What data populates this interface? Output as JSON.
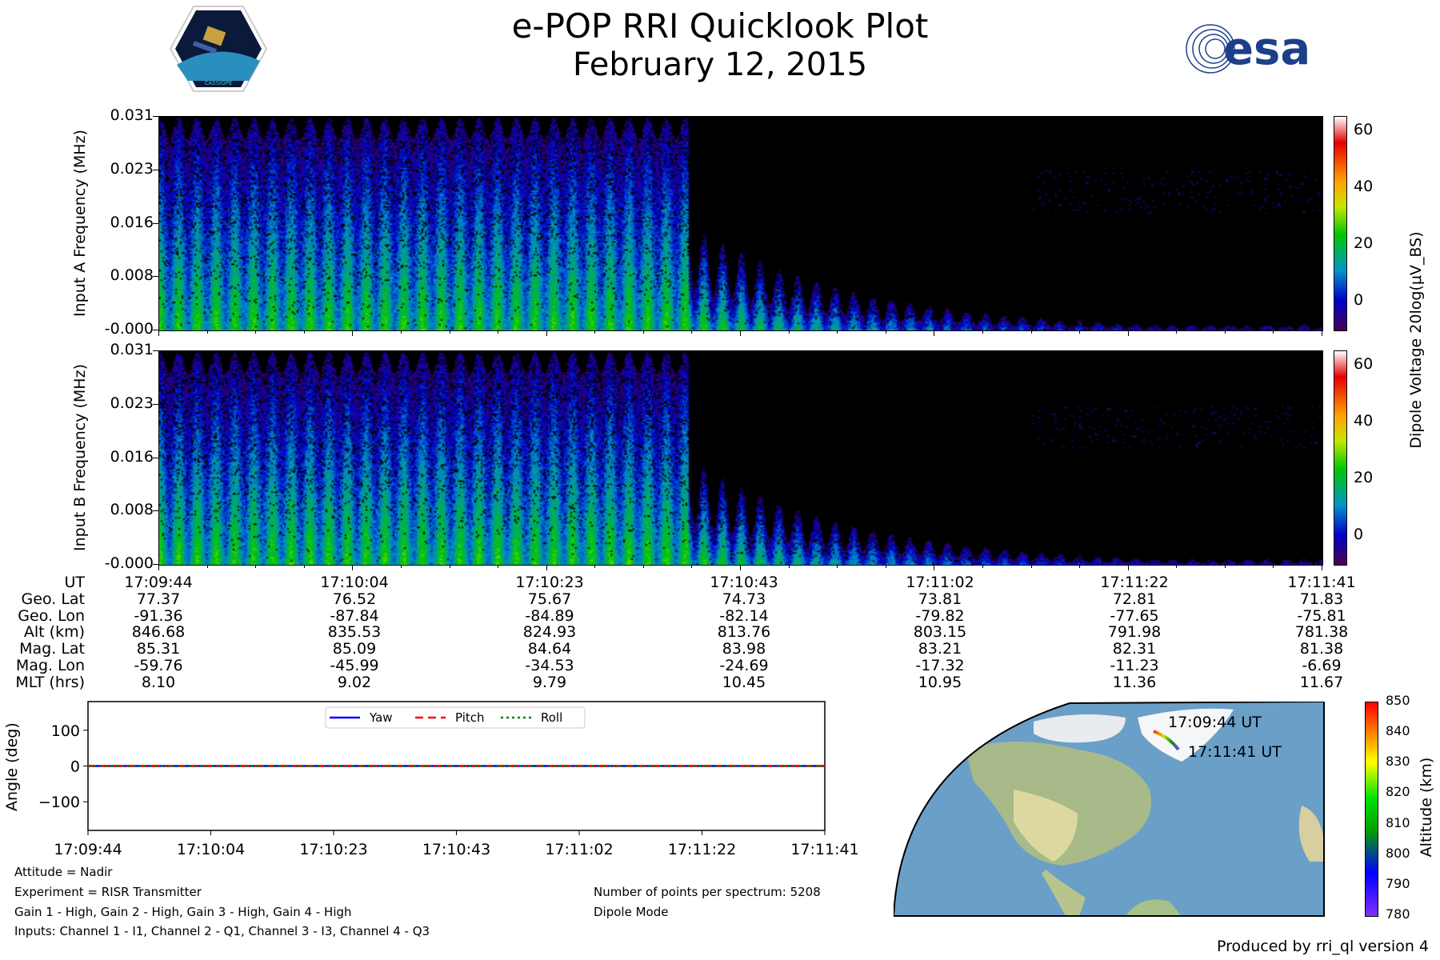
{
  "header": {
    "title": "e-POP RRI Quicklook Plot",
    "date": "February 12, 2015",
    "logo_left": "CASSIOPE",
    "logo_right": "esa"
  },
  "chart_data": [
    {
      "type": "heatmap",
      "name": "Input A",
      "ylabel": "Input A Frequency (MHz)",
      "yticks": [
        "0.031",
        "0.023",
        "0.016",
        "0.008",
        "-0.000"
      ],
      "ylim": [
        0,
        0.031
      ],
      "colorbar": {
        "label": "Dipole Voltage 20log(μV_BS)",
        "ticks": [
          "60",
          "40",
          "20",
          "0"
        ],
        "range": [
          -10,
          65
        ]
      }
    },
    {
      "type": "heatmap",
      "name": "Input B",
      "ylabel": "Input B Frequency (MHz)",
      "yticks": [
        "0.031",
        "0.023",
        "0.016",
        "0.008",
        "-0.000"
      ],
      "ylim": [
        0,
        0.031
      ],
      "colorbar": {
        "label": "Dipole Voltage 20log(μV_BS)",
        "ticks": [
          "60",
          "40",
          "20",
          "0"
        ],
        "range": [
          -10,
          65
        ]
      }
    },
    {
      "type": "line",
      "name": "Attitude",
      "ylabel": "Angle (deg)",
      "ylim": [
        -180,
        180
      ],
      "yticks": [
        "100",
        "0",
        "−100"
      ],
      "xticks": [
        "17:09:44",
        "17:10:04",
        "17:10:23",
        "17:10:43",
        "17:11:02",
        "17:11:22",
        "17:11:41"
      ],
      "series": [
        {
          "name": "Yaw",
          "color": "#0000ff",
          "values": [
            0,
            0,
            0,
            0,
            0,
            0,
            0
          ]
        },
        {
          "name": "Pitch",
          "color": "#ff0000",
          "values": [
            0,
            0,
            0,
            0,
            0,
            0,
            0
          ]
        },
        {
          "name": "Roll",
          "color": "#008000",
          "values": [
            0,
            0,
            0,
            0,
            0,
            0,
            0
          ]
        }
      ]
    },
    {
      "type": "scatter",
      "name": "Ground track",
      "annotations": [
        "17:09:44 UT",
        "17:11:41 UT"
      ],
      "colorbar": {
        "label": "Altitude (km)",
        "ticks": [
          "850",
          "840",
          "830",
          "820",
          "810",
          "800",
          "790",
          "780"
        ],
        "range": [
          780,
          850
        ]
      }
    }
  ],
  "table": {
    "labels": [
      "UT",
      "Geo. Lat",
      "Geo. Lon",
      "Alt (km)",
      "Mag. Lat",
      "Mag. Lon",
      "MLT (hrs)"
    ],
    "columns": [
      [
        "17:09:44",
        "77.37",
        "-91.36",
        "846.68",
        "85.31",
        "-59.76",
        "8.10"
      ],
      [
        "17:10:04",
        "76.52",
        "-87.84",
        "835.53",
        "85.09",
        "-45.99",
        "9.02"
      ],
      [
        "17:10:23",
        "75.67",
        "-84.89",
        "824.93",
        "84.64",
        "-34.53",
        "9.79"
      ],
      [
        "17:10:43",
        "74.73",
        "-82.14",
        "813.76",
        "83.98",
        "-24.69",
        "10.45"
      ],
      [
        "17:11:02",
        "73.81",
        "-79.82",
        "803.15",
        "83.21",
        "-17.32",
        "10.95"
      ],
      [
        "17:11:22",
        "72.81",
        "-77.65",
        "791.98",
        "82.31",
        "-11.23",
        "11.36"
      ],
      [
        "17:11:41",
        "71.83",
        "-75.81",
        "781.38",
        "81.38",
        "-6.69",
        "11.67"
      ]
    ]
  },
  "info": {
    "left": [
      "Attitude = Nadir",
      "Experiment = RISR Transmitter",
      "Gain 1 - High, Gain 2 - High, Gain 3 - High, Gain 4 - High",
      "Inputs: Channel 1 - I1, Channel 2 - Q1, Channel 3 - I3, Channel 4 - Q3"
    ],
    "right": [
      "Number of points per spectrum: 5208",
      "Dipole Mode"
    ],
    "footer": "Produced by rri_ql version 4"
  }
}
